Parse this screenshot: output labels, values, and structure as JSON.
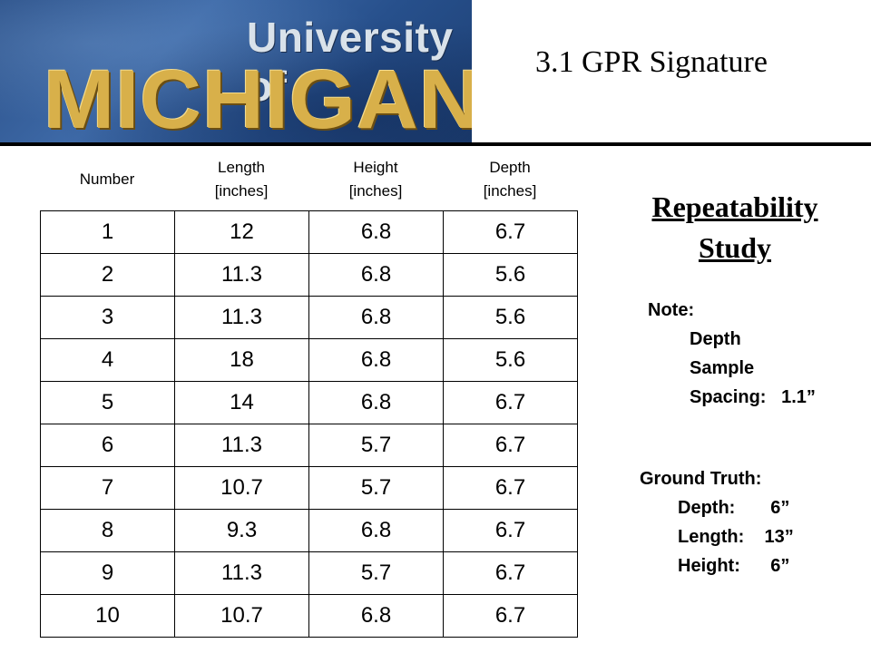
{
  "logo": {
    "line1": "University of",
    "line2": "MICHIGAN"
  },
  "title": "3.1 GPR Signature",
  "table": {
    "headers": [
      {
        "l1": "Number",
        "l2": ""
      },
      {
        "l1": "Length",
        "l2": "[inches]"
      },
      {
        "l1": "Height",
        "l2": "[inches]"
      },
      {
        "l1": "Depth",
        "l2": "[inches]"
      }
    ],
    "rows": [
      [
        "1",
        "12",
        "6.8",
        "6.7"
      ],
      [
        "2",
        "11.3",
        "6.8",
        "5.6"
      ],
      [
        "3",
        "11.3",
        "6.8",
        "5.6"
      ],
      [
        "4",
        "18",
        "6.8",
        "5.6"
      ],
      [
        "5",
        "14",
        "6.8",
        "6.7"
      ],
      [
        "6",
        "11.3",
        "5.7",
        "6.7"
      ],
      [
        "7",
        "10.7",
        "5.7",
        "6.7"
      ],
      [
        "8",
        "9.3",
        "6.8",
        "6.7"
      ],
      [
        "9",
        "11.3",
        "5.7",
        "6.7"
      ],
      [
        "10",
        "10.7",
        "6.8",
        "6.7"
      ]
    ]
  },
  "study": {
    "line1": "Repeatability",
    "line2": "Study"
  },
  "note": {
    "label": "Note:",
    "l1": "Depth",
    "l2": "Sample",
    "l3": "Spacing:   1.1”"
  },
  "truth": {
    "label": "Ground Truth:",
    "depth": "Depth:       6”",
    "length": "Length:    13”",
    "height": "Height:      6”"
  }
}
